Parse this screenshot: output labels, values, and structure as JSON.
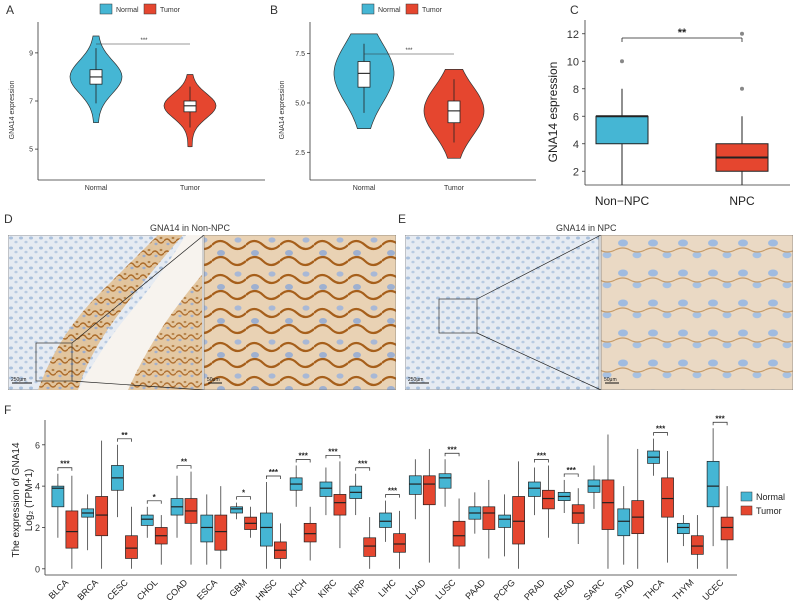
{
  "colors": {
    "normal": "#45b6d4",
    "tumor": "#e5462f",
    "ihc_brown": "#b8752a",
    "ihc_blue": "#9fb8d4"
  },
  "panels": {
    "A": {
      "letter": "A",
      "legend": [
        "Normal",
        "Tumor"
      ],
      "ylabel": "GNA14 expression",
      "sig": "***",
      "chart_data": {
        "type": "violin",
        "categories": [
          "Normal",
          "Tumor"
        ],
        "ylim": [
          3.8,
          10.2
        ],
        "yticks": [
          "5",
          "7",
          "9"
        ],
        "median": [
          8.0,
          6.8
        ],
        "q1": [
          7.7,
          6.55
        ],
        "q3": [
          8.3,
          7.0
        ],
        "whisker_low": [
          6.9,
          5.9
        ],
        "whisker_high": [
          9.2,
          7.6
        ]
      }
    },
    "B": {
      "letter": "B",
      "legend": [
        "Normal",
        "Tumor"
      ],
      "ylabel": "GNA14 expression",
      "sig": "***",
      "chart_data": {
        "type": "violin",
        "categories": [
          "Normal",
          "Tumor"
        ],
        "ylim": [
          1.2,
          9.0
        ],
        "yticks": [
          "2.5",
          "5.0",
          "7.5"
        ],
        "median": [
          6.5,
          4.6
        ],
        "q1": [
          5.8,
          4.0
        ],
        "q3": [
          7.1,
          5.1
        ],
        "whisker_low": [
          4.5,
          3.0
        ],
        "whisker_high": [
          8.0,
          6.2
        ]
      }
    },
    "C": {
      "letter": "C",
      "ylabel": "GNA14 espression",
      "sig": "**",
      "chart_data": {
        "type": "box",
        "categories": [
          "Non−NPC",
          "NPC"
        ],
        "ylim": [
          1,
          13
        ],
        "yticks": [
          "2",
          "4",
          "6",
          "8",
          "10",
          "12"
        ],
        "median": [
          6,
          3
        ],
        "q1": [
          4,
          2
        ],
        "q3": [
          6,
          4
        ],
        "whisker_low": [
          1,
          1
        ],
        "whisker_high": [
          8,
          6
        ],
        "outliers": [
          [
            10
          ],
          [
            8,
            12
          ]
        ]
      }
    },
    "D": {
      "letter": "D",
      "title": "GNA14 in  Non-NPC",
      "scale_left": "250μm",
      "scale_right": "50μm"
    },
    "E": {
      "letter": "E",
      "title": "GNA14 in NPC",
      "scale_left": "250μm",
      "scale_right": "50μm"
    },
    "F": {
      "letter": "F",
      "ylabel_line1": "The expression of GNA14",
      "ylabel_line2": "Log₂ (TPM+1)",
      "legend": [
        "Normal",
        "Tumor"
      ],
      "chart_data": {
        "type": "box",
        "ylim": [
          -0.3,
          7.2
        ],
        "yticks": [
          "0",
          "2",
          "4",
          "6"
        ],
        "categories": [
          "BLCA",
          "BRCA",
          "CESC",
          "CHOL",
          "COAD",
          "ESCA",
          "GBM",
          "HNSC",
          "KICH",
          "KIRC",
          "KIRP",
          "LIHC",
          "LUAD",
          "LUSC",
          "PAAD",
          "PCPG",
          "PRAD",
          "READ",
          "SARC",
          "STAD",
          "THCA",
          "THYM",
          "UCEC"
        ],
        "significance": [
          "***",
          "",
          "**",
          "*",
          "**",
          "",
          "*",
          "***",
          "***",
          "***",
          "***",
          "***",
          "",
          "***",
          "",
          "",
          "***",
          "***",
          "",
          "",
          "***",
          "",
          "***"
        ],
        "series": [
          {
            "name": "Normal",
            "median": [
              3.9,
              2.7,
              4.4,
              2.4,
              3.0,
              2.0,
              2.9,
              2.0,
              4.1,
              3.9,
              3.7,
              2.3,
              4.1,
              4.4,
              2.7,
              2.4,
              3.9,
              3.5,
              4.0,
              2.3,
              5.4,
              2.0,
              4.0
            ],
            "q1": [
              3.0,
              2.5,
              3.8,
              2.1,
              2.6,
              1.3,
              2.7,
              1.1,
              3.8,
              3.5,
              3.4,
              2.0,
              3.6,
              3.9,
              2.4,
              2.0,
              3.5,
              3.3,
              3.7,
              1.6,
              5.1,
              1.7,
              3.0
            ],
            "q3": [
              4.0,
              2.9,
              5.0,
              2.6,
              3.4,
              2.6,
              3.0,
              2.7,
              4.4,
              4.2,
              4.0,
              2.7,
              4.5,
              4.6,
              3.0,
              2.6,
              4.2,
              3.7,
              4.3,
              2.9,
              5.7,
              2.2,
              5.2
            ],
            "low": [
              1.5,
              0.9,
              2.5,
              1.5,
              1.5,
              0.2,
              2.4,
              0.0,
              3.0,
              2.6,
              2.6,
              1.3,
              2.4,
              3.0,
              1.7,
              0.6,
              2.6,
              2.7,
              2.9,
              0.2,
              4.5,
              1.1,
              1.1
            ],
            "high": [
              4.6,
              3.6,
              6.0,
              3.0,
              4.5,
              3.6,
              3.2,
              4.2,
              5.0,
              4.9,
              4.6,
              3.3,
              5.3,
              5.3,
              3.7,
              3.6,
              4.9,
              4.3,
              5.0,
              4.0,
              6.3,
              2.6,
              6.8
            ]
          },
          {
            "name": "Tumor",
            "median": [
              1.8,
              2.6,
              1.0,
              1.6,
              2.8,
              1.8,
              2.2,
              0.9,
              1.7,
              3.2,
              1.1,
              1.2,
              4.1,
              1.6,
              2.7,
              2.3,
              3.4,
              2.7,
              3.2,
              2.5,
              3.4,
              1.1,
              2.0
            ],
            "q1": [
              1.0,
              1.6,
              0.5,
              1.2,
              2.2,
              0.9,
              1.9,
              0.5,
              1.3,
              2.6,
              0.6,
              0.8,
              3.1,
              1.1,
              1.9,
              1.2,
              2.9,
              2.2,
              1.9,
              1.7,
              2.5,
              0.7,
              1.4
            ],
            "q3": [
              2.8,
              3.5,
              1.6,
              2.0,
              3.4,
              2.6,
              2.5,
              1.3,
              2.2,
              3.6,
              1.5,
              1.7,
              4.5,
              2.3,
              3.0,
              3.5,
              3.8,
              3.1,
              4.3,
              3.3,
              4.4,
              1.6,
              2.5
            ],
            "low": [
              0.0,
              0.0,
              0.0,
              0.2,
              0.2,
              0.0,
              1.5,
              0.0,
              0.4,
              1.0,
              0.0,
              0.0,
              0.3,
              0.0,
              0.5,
              0.0,
              1.5,
              1.2,
              0.0,
              0.0,
              0.3,
              0.0,
              0.0
            ],
            "high": [
              4.5,
              6.2,
              3.0,
              2.6,
              4.7,
              4.0,
              3.0,
              2.2,
              3.0,
              5.2,
              2.5,
              2.8,
              5.8,
              3.4,
              4.3,
              5.2,
              5.0,
              3.9,
              6.5,
              5.8,
              5.7,
              2.6,
              4.0
            ]
          }
        ]
      }
    }
  }
}
